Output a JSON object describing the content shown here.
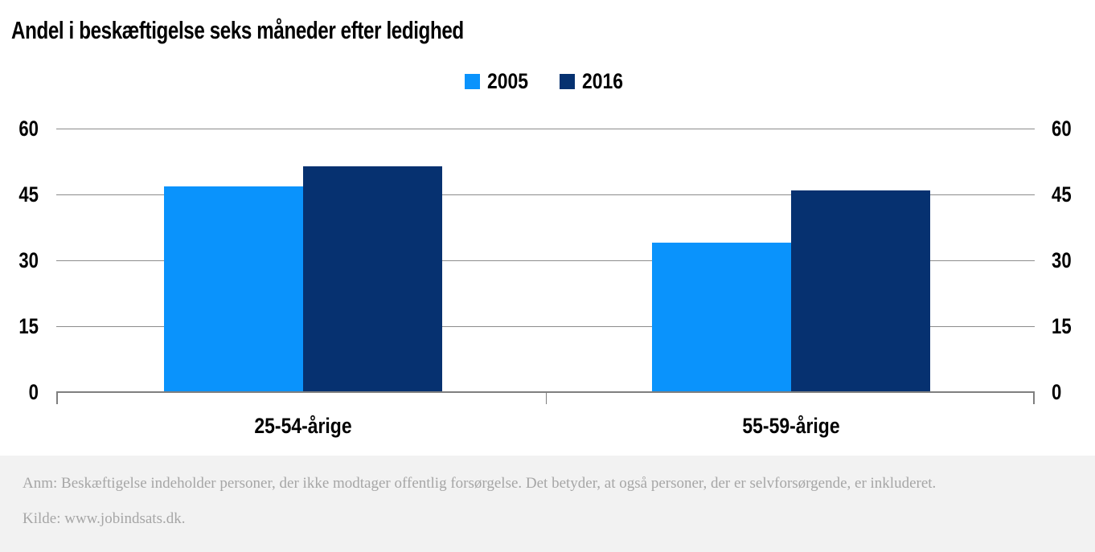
{
  "chart_data": {
    "type": "bar",
    "title": "Andel i beskæftigelse seks måneder efter ledighed",
    "categories": [
      "25-54-årige",
      "55-59-årige"
    ],
    "series": [
      {
        "name": "2005",
        "color": "#0a93fc",
        "values": [
          46.8,
          34.1
        ]
      },
      {
        "name": "2016",
        "color": "#063170",
        "values": [
          51.4,
          46.0
        ]
      }
    ],
    "yticks": [
      0,
      15,
      30,
      45,
      60
    ],
    "ylim": [
      0,
      60
    ],
    "xlabel": "",
    "ylabel": "",
    "grid": true,
    "legend_position": "top-center"
  },
  "footer": {
    "note": "Anm: Beskæftigelse indeholder personer, der ikke modtager offentlig forsørgelse. Det betyder, at også personer, der er selvforsørgende, er inkluderet.",
    "source": "Kilde: www.jobindsats.dk."
  },
  "colors": {
    "gridline": "#8c8c8c",
    "axis_line": "#7f7f7f",
    "axis_text": "#000000",
    "footer_bg": "#f2f2f2",
    "footer_text": "#a6a6a6"
  }
}
